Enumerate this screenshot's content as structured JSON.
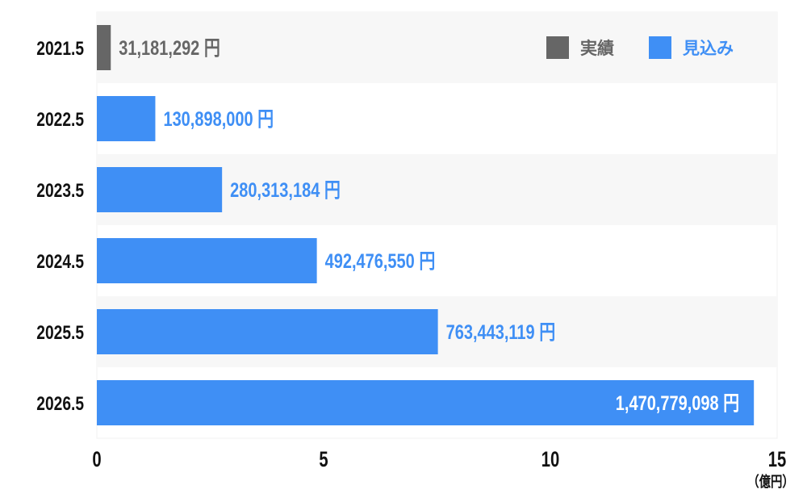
{
  "chart_data": {
    "type": "bar",
    "orientation": "horizontal",
    "categories": [
      "2021.5",
      "2022.5",
      "2023.5",
      "2024.5",
      "2025.5",
      "2026.5"
    ],
    "values": [
      31181292,
      130898000,
      280313184,
      492476550,
      763443119,
      1470779098
    ],
    "value_labels": [
      "31,181,292 円",
      "130,898,000 円",
      "280,313,184 円",
      "492,476,550 円",
      "763,443,119 円",
      "1,470,779,098 円"
    ],
    "series_type": [
      "actual",
      "forecast",
      "forecast",
      "forecast",
      "forecast",
      "forecast"
    ],
    "legend": [
      {
        "key": "actual",
        "label": "実績",
        "color": "#666666"
      },
      {
        "key": "forecast",
        "label": "見込み",
        "color": "#3f8ff5"
      }
    ],
    "legend_position": "top-right",
    "xlim": [
      0,
      15
    ],
    "x_ticks": [
      "0",
      "5",
      "10",
      "15"
    ],
    "x_unit_label": "（億円）",
    "unit_divisor": 100000000,
    "grid": false
  }
}
